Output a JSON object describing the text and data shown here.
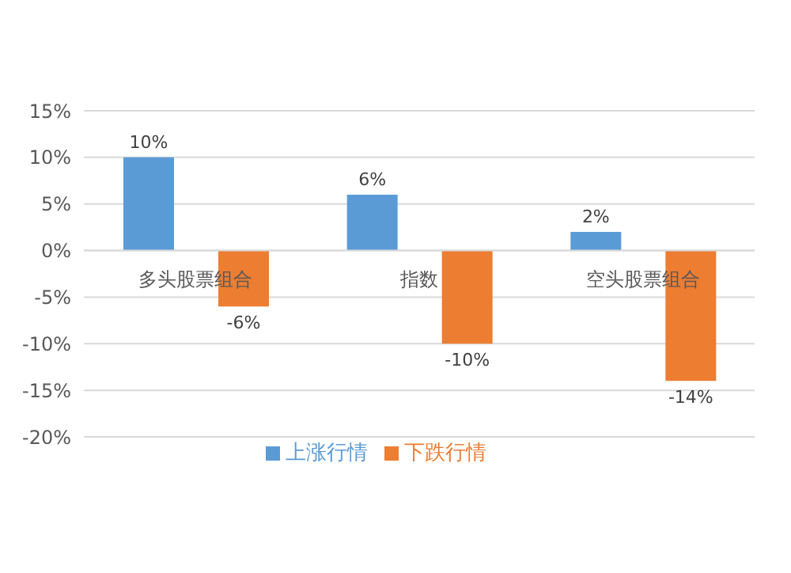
{
  "chart_data": {
    "type": "bar",
    "categories": [
      "多头股票组合",
      "指数",
      "空头股票组合"
    ],
    "series": [
      {
        "name": "上涨行情",
        "color": "#5b9bd5",
        "values": [
          10,
          6,
          2
        ],
        "value_labels": [
          "10%",
          "6%",
          "2%"
        ]
      },
      {
        "name": "下跌行情",
        "color": "#ed7d31",
        "values": [
          -6,
          -10,
          -14
        ],
        "value_labels": [
          "-6%",
          "-10%",
          "-14%"
        ]
      }
    ],
    "ylim": [
      -20,
      15
    ],
    "yticks": [
      {
        "value": -20,
        "label": "-20%"
      },
      {
        "value": -15,
        "label": "-15%"
      },
      {
        "value": -10,
        "label": "-10%"
      },
      {
        "value": -5,
        "label": "-5%"
      },
      {
        "value": 0,
        "label": "0%"
      },
      {
        "value": 5,
        "label": "5%"
      },
      {
        "value": 10,
        "label": "10%"
      },
      {
        "value": 15,
        "label": "15%"
      }
    ],
    "grid": "y",
    "legend": "bottom"
  }
}
